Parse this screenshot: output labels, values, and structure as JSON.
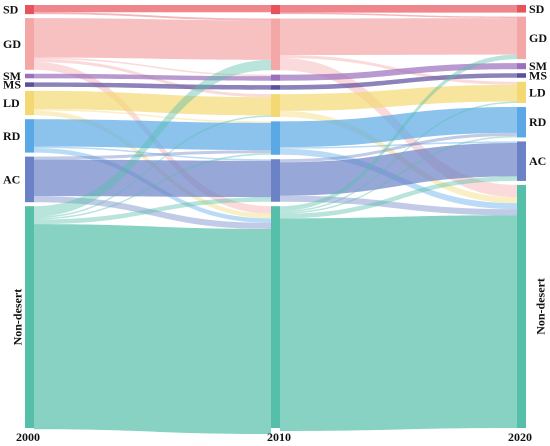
{
  "years": [
    "2000",
    "2010",
    "2020"
  ],
  "categories": [
    {
      "key": "SD",
      "label": "SD",
      "color": "#e8525b"
    },
    {
      "key": "GD",
      "label": "GD",
      "color": "#f4a7a7"
    },
    {
      "key": "SM",
      "label": "SM",
      "color": "#9a6fbd"
    },
    {
      "key": "MS",
      "label": "MS",
      "color": "#5b4f9e"
    },
    {
      "key": "LD",
      "label": "LD",
      "color": "#f3d873"
    },
    {
      "key": "RD",
      "label": "RD",
      "color": "#5aa9e6"
    },
    {
      "key": "AC",
      "label": "AC",
      "color": "#6b82c6"
    },
    {
      "key": "Non-desert",
      "label": "Non-desert",
      "color": "#56bfa9"
    }
  ],
  "node_values": {
    "2000": {
      "SD": 3,
      "GD": 17,
      "SM": 1.5,
      "MS": 1.5,
      "LD": 8,
      "RD": 11,
      "AC": 15,
      "Non-desert": 73
    },
    "2010": {
      "SD": 3,
      "GD": 17,
      "SM": 2,
      "MS": 1.5,
      "LD": 7.5,
      "RD": 11,
      "AC": 14,
      "Non-desert": 73
    },
    "2020": {
      "SD": 2.5,
      "GD": 14,
      "SM": 2,
      "MS": 1.5,
      "LD": 7,
      "RD": 10,
      "AC": 13,
      "Non-desert": 80
    }
  },
  "flows": [
    {
      "period": 0,
      "source": "SD",
      "target": "SD",
      "value": 2.4
    },
    {
      "period": 0,
      "source": "SD",
      "target": "GD",
      "value": 0.6
    },
    {
      "period": 0,
      "source": "GD",
      "target": "GD",
      "value": 13
    },
    {
      "period": 0,
      "source": "GD",
      "target": "SM",
      "value": 0.5
    },
    {
      "period": 0,
      "source": "GD",
      "target": "LD",
      "value": 1
    },
    {
      "period": 0,
      "source": "GD",
      "target": "Non-desert",
      "value": 2.5
    },
    {
      "period": 0,
      "source": "SM",
      "target": "SM",
      "value": 1.5
    },
    {
      "period": 0,
      "source": "MS",
      "target": "MS",
      "value": 1.5
    },
    {
      "period": 0,
      "source": "LD",
      "target": "LD",
      "value": 6
    },
    {
      "period": 0,
      "source": "LD",
      "target": "RD",
      "value": 0.5
    },
    {
      "period": 0,
      "source": "LD",
      "target": "Non-desert",
      "value": 1.5
    },
    {
      "period": 0,
      "source": "RD",
      "target": "RD",
      "value": 9
    },
    {
      "period": 0,
      "source": "RD",
      "target": "AC",
      "value": 0.5
    },
    {
      "period": 0,
      "source": "RD",
      "target": "Non-desert",
      "value": 1.5
    },
    {
      "period": 0,
      "source": "AC",
      "target": "AC",
      "value": 12
    },
    {
      "period": 0,
      "source": "AC",
      "target": "RD",
      "value": 1
    },
    {
      "period": 0,
      "source": "AC",
      "target": "Non-desert",
      "value": 2
    },
    {
      "period": 0,
      "source": "Non-desert",
      "target": "Non-desert",
      "value": 67.5
    },
    {
      "period": 0,
      "source": "Non-desert",
      "target": "GD",
      "value": 3.4
    },
    {
      "period": 0,
      "source": "Non-desert",
      "target": "LD",
      "value": 0.5
    },
    {
      "period": 0,
      "source": "Non-desert",
      "target": "RD",
      "value": 0.5
    },
    {
      "period": 0,
      "source": "Non-desert",
      "target": "AC",
      "value": 1.5
    },
    {
      "period": 1,
      "source": "SD",
      "target": "SD",
      "value": 2.5
    },
    {
      "period": 1,
      "source": "SD",
      "target": "GD",
      "value": 0.5
    },
    {
      "period": 1,
      "source": "GD",
      "target": "GD",
      "value": 12
    },
    {
      "period": 1,
      "source": "GD",
      "target": "LD",
      "value": 1
    },
    {
      "period": 1,
      "source": "GD",
      "target": "Non-desert",
      "value": 4
    },
    {
      "period": 1,
      "source": "SM",
      "target": "SM",
      "value": 2
    },
    {
      "period": 1,
      "source": "MS",
      "target": "MS",
      "value": 1.5
    },
    {
      "period": 1,
      "source": "LD",
      "target": "LD",
      "value": 5.5
    },
    {
      "period": 1,
      "source": "LD",
      "target": "Non-desert",
      "value": 2
    },
    {
      "period": 1,
      "source": "RD",
      "target": "RD",
      "value": 8.5
    },
    {
      "period": 1,
      "source": "RD",
      "target": "AC",
      "value": 0.5
    },
    {
      "period": 1,
      "source": "RD",
      "target": "Non-desert",
      "value": 2
    },
    {
      "period": 1,
      "source": "AC",
      "target": "AC",
      "value": 11
    },
    {
      "period": 1,
      "source": "AC",
      "target": "RD",
      "value": 1
    },
    {
      "period": 1,
      "source": "AC",
      "target": "Non-desert",
      "value": 2
    },
    {
      "period": 1,
      "source": "Non-desert",
      "target": "Non-desert",
      "value": 70
    },
    {
      "period": 1,
      "source": "Non-desert",
      "target": "GD",
      "value": 1.5
    },
    {
      "period": 1,
      "source": "Non-desert",
      "target": "LD",
      "value": 0.5
    },
    {
      "period": 1,
      "source": "Non-desert",
      "target": "RD",
      "value": 0.5
    },
    {
      "period": 1,
      "source": "Non-desert",
      "target": "AC",
      "value": 1.5
    }
  ]
}
